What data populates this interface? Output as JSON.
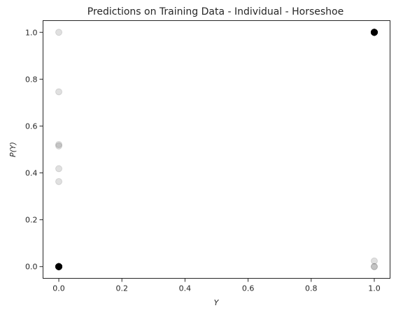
{
  "chart_data": {
    "type": "scatter",
    "title": "Predictions on Training Data - Individual - Horseshoe",
    "xlabel": "Y",
    "ylabel": "P(Y)",
    "xlim": [
      -0.05,
      1.05
    ],
    "ylim": [
      -0.05,
      1.05
    ],
    "xticks": [
      0.0,
      0.2,
      0.4,
      0.6,
      0.8,
      1.0
    ],
    "yticks": [
      0.0,
      0.2,
      0.4,
      0.6,
      0.8,
      1.0
    ],
    "tick_labels": {
      "x": [
        "0.0",
        "0.2",
        "0.4",
        "0.6",
        "0.8",
        "1.0"
      ],
      "y": [
        "0.0",
        "0.2",
        "0.4",
        "0.6",
        "0.8",
        "1.0"
      ]
    },
    "marker_color": "#000000",
    "marker_alpha": 0.12,
    "grid": false,
    "series": [
      {
        "name": "predictions",
        "points": [
          {
            "x": 0,
            "y": 1.0
          },
          {
            "x": 0,
            "y": 0.746
          },
          {
            "x": 0,
            "y": 0.521
          },
          {
            "x": 0,
            "y": 0.515
          },
          {
            "x": 0,
            "y": 0.418
          },
          {
            "x": 0,
            "y": 0.363
          },
          {
            "x": 0,
            "y": 0.0,
            "count": 40
          },
          {
            "x": 1,
            "y": 1.0,
            "count": 40
          },
          {
            "x": 1,
            "y": 0.024
          },
          {
            "x": 1,
            "y": 0.0,
            "count": 2
          }
        ]
      }
    ]
  }
}
